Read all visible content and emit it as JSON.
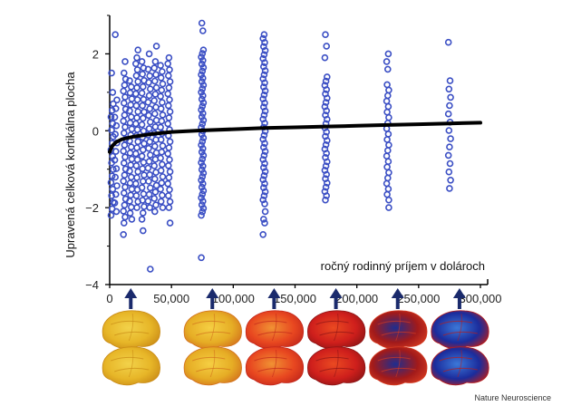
{
  "chart_data": {
    "type": "scatter",
    "title": "",
    "ylabel": "Upravená celková kortikálna plocha",
    "xlabel": "ročný rodinný príjem v dolároch",
    "xlim": [
      0,
      300000
    ],
    "ylim": [
      -4,
      3
    ],
    "x_ticks": [
      0,
      50000,
      100000,
      150000,
      200000,
      250000,
      300000
    ],
    "x_tick_labels": [
      "0",
      "50,000",
      "100,000",
      "150,000",
      "200,000",
      "250,000",
      "300,000"
    ],
    "y_ticks": [
      -4,
      -2,
      0,
      2
    ],
    "y_tick_labels": [
      "−4",
      "−2",
      "0",
      "2"
    ],
    "grid": false,
    "series": [
      {
        "marker": "open-circle",
        "color": "#3b4fc4",
        "columns": [
          {
            "x": 2000,
            "y_min": -2.2,
            "y_max": 0.7,
            "n": 18,
            "extra": [
              1.5,
              1.0
            ]
          },
          {
            "x": 5000,
            "y_min": -2.1,
            "y_max": 0.8,
            "n": 14,
            "extra": [
              2.5
            ]
          },
          {
            "x": 12000,
            "y_min": -2.4,
            "y_max": 1.5,
            "n": 26,
            "extra": [
              1.8,
              -2.7
            ]
          },
          {
            "x": 17000,
            "y_min": -2.3,
            "y_max": 1.3,
            "n": 24,
            "extra": []
          },
          {
            "x": 22000,
            "y_min": -2.0,
            "y_max": 1.9,
            "n": 26,
            "extra": [
              2.1
            ]
          },
          {
            "x": 27000,
            "y_min": -2.3,
            "y_max": 1.8,
            "n": 26,
            "extra": [
              -2.6
            ]
          },
          {
            "x": 32000,
            "y_min": -2.0,
            "y_max": 1.6,
            "n": 22,
            "extra": [
              2.0,
              -3.6
            ]
          },
          {
            "x": 37000,
            "y_min": -2.1,
            "y_max": 1.8,
            "n": 24,
            "extra": [
              2.2
            ]
          },
          {
            "x": 42000,
            "y_min": -2.0,
            "y_max": 1.7,
            "n": 24,
            "extra": []
          },
          {
            "x": 48000,
            "y_min": -2.0,
            "y_max": 1.9,
            "n": 26,
            "extra": [
              -2.4
            ]
          },
          {
            "x": 75000,
            "y_min": -2.2,
            "y_max": 2.1,
            "n": 48,
            "extra": [
              2.8,
              2.6,
              -3.3
            ]
          },
          {
            "x": 125000,
            "y_min": -1.9,
            "y_max": 2.4,
            "n": 42,
            "extra": [
              2.5,
              -2.1,
              -2.3,
              -2.4,
              -2.7
            ]
          },
          {
            "x": 175000,
            "y_min": -1.8,
            "y_max": 1.4,
            "n": 30,
            "extra": [
              2.5,
              2.2,
              1.9
            ]
          },
          {
            "x": 225000,
            "y_min": -1.8,
            "y_max": 1.2,
            "n": 22,
            "extra": [
              2.0,
              1.8,
              1.6,
              -2.0
            ]
          },
          {
            "x": 275000,
            "y_min": -1.5,
            "y_max": 1.3,
            "n": 14,
            "extra": [
              2.3
            ]
          }
        ]
      },
      {
        "type": "line",
        "color": "#000000",
        "x": [
          0,
          2000,
          5000,
          10000,
          20000,
          35000,
          50000,
          75000,
          100000,
          125000,
          150000,
          175000,
          200000,
          225000,
          250000,
          275000,
          300000
        ],
        "y": [
          -0.55,
          -0.4,
          -0.3,
          -0.22,
          -0.15,
          -0.08,
          -0.03,
          0.01,
          0.04,
          0.07,
          0.09,
          0.11,
          0.13,
          0.15,
          0.17,
          0.19,
          0.21
        ]
      }
    ],
    "arrow_x": [
      9000,
      75000,
      125000,
      175000,
      225000,
      275000
    ],
    "arrow_color": "#1a2a6c",
    "brain_panels": [
      {
        "x": 9000,
        "palette": [
          "#e7b628",
          "#f2d24a",
          "#c98a15"
        ]
      },
      {
        "x": 75000,
        "palette": [
          "#e6ad25",
          "#f5cf43",
          "#d2701c"
        ]
      },
      {
        "x": 125000,
        "palette": [
          "#e84720",
          "#f09233",
          "#c2261b"
        ]
      },
      {
        "x": 175000,
        "palette": [
          "#cf1f1c",
          "#ea4a21",
          "#8c1415"
        ]
      },
      {
        "x": 225000,
        "palette": [
          "#a21a1a",
          "#1e2d8f",
          "#d53a20"
        ]
      },
      {
        "x": 275000,
        "palette": [
          "#1b2c9c",
          "#3c78d8",
          "#b81d1b"
        ]
      }
    ]
  },
  "credit": "Nature Neuroscience"
}
